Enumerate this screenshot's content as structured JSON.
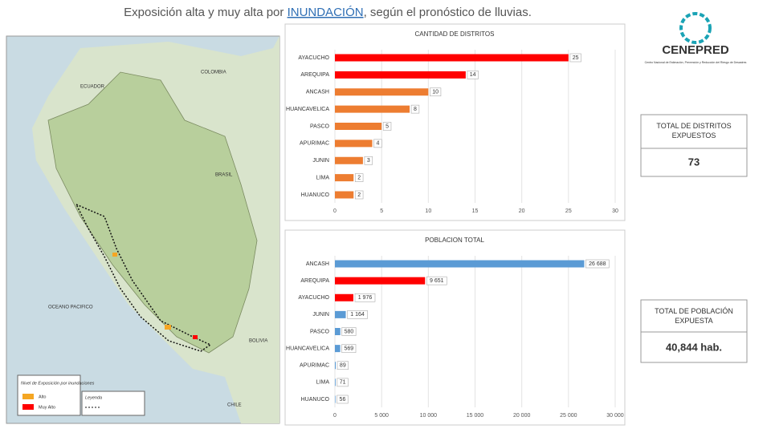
{
  "page": {
    "title_parts": [
      "Exposición alta y muy alta por ",
      "INUNDACIÓN",
      ", según el pronóstico de lluvias."
    ],
    "logo": "CENEPRED",
    "logo_sub": "Centro Nacional de Estimación, Prevención y Reducción del Riesgo de Desastres",
    "kpis": [
      {
        "label": "TOTAL DE DISTRITOS EXPUESTOS",
        "value": "73"
      },
      {
        "label": "TOTAL DE POBLACIÓN EXPUESTA",
        "value": "40,844 hab."
      }
    ],
    "map_labels": [
      "COLOMBIA",
      "ECUADOR",
      "BRASIL",
      "BOLIVIA",
      "OCEANO PACIFICO",
      "CHILE"
    ],
    "map_legend": {
      "title": "Nivel de Exposición por inundaciones",
      "items": [
        {
          "name": "Alto",
          "color": "#f5a623"
        },
        {
          "name": "Muy Alto",
          "color": "#ff0000"
        }
      ],
      "legend_title": "Leyenda"
    }
  },
  "chart_data": [
    {
      "type": "bar",
      "orientation": "horizontal",
      "title": "CANTIDAD DE DISTRITOS",
      "categories": [
        "AYACUCHO",
        "AREQUIPA",
        "ANCASH",
        "HUANCAVELICA",
        "PASCO",
        "APURIMAC",
        "JUNIN",
        "LIMA",
        "HUANUCO"
      ],
      "values": [
        25,
        14,
        10,
        8,
        5,
        4,
        3,
        2,
        2
      ],
      "colors": [
        "#ff0000",
        "#ff0000",
        "#ed7d31",
        "#ed7d31",
        "#ed7d31",
        "#ed7d31",
        "#ed7d31",
        "#ed7d31",
        "#ed7d31"
      ],
      "xlim": [
        0,
        30
      ],
      "xticks": [
        0,
        5,
        10,
        15,
        20,
        25,
        30
      ],
      "grid": true
    },
    {
      "type": "bar",
      "orientation": "horizontal",
      "title": "POBLACION TOTAL",
      "categories": [
        "ANCASH",
        "AREQUIPA",
        "AYACUCHO",
        "JUNIN",
        "PASCO",
        "HUANCAVELICA",
        "APURIMAC",
        "LIMA",
        "HUANUCO"
      ],
      "values": [
        26688,
        9651,
        1976,
        1164,
        580,
        569,
        89,
        71,
        56
      ],
      "value_labels": [
        "26 688",
        "9 651",
        "1 976",
        "1 164",
        "580",
        "569",
        "89",
        "71",
        "56"
      ],
      "colors": [
        "#5b9bd5",
        "#ff0000",
        "#ff0000",
        "#5b9bd5",
        "#5b9bd5",
        "#5b9bd5",
        "#5b9bd5",
        "#5b9bd5",
        "#5b9bd5"
      ],
      "xlim": [
        0,
        30000
      ],
      "xticks": [
        0,
        {
          "value": 5000,
          "label": "5 000"
        },
        {
          "value": 10000,
          "label": "10 000"
        },
        {
          "value": 15000,
          "label": "15 000"
        },
        {
          "value": 20000,
          "label": "20 000"
        },
        {
          "value": 25000,
          "label": "25 000"
        },
        {
          "value": 30000,
          "label": "30 000"
        }
      ],
      "grid": true
    }
  ]
}
